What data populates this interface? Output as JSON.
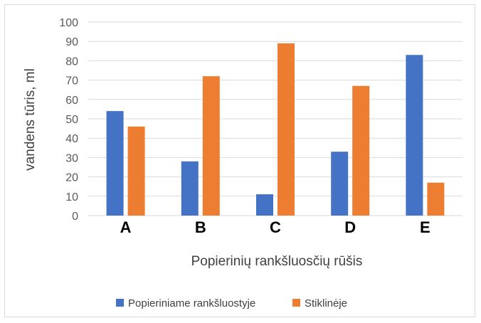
{
  "chart_data": {
    "type": "bar",
    "categories": [
      "A",
      "B",
      "C",
      "D",
      "E"
    ],
    "series": [
      {
        "name": "Popieriniame rankšluostyje",
        "color": "#4472c4",
        "values": [
          54,
          28,
          11,
          33,
          83
        ]
      },
      {
        "name": "Stiklinėje",
        "color": "#ed7d31",
        "values": [
          46,
          72,
          89,
          67,
          17
        ]
      }
    ],
    "title": "",
    "xlabel": "Popierinių rankšluosčių rūšis",
    "ylabel": "vandens tūris, ml",
    "ylim": [
      0,
      100
    ],
    "yticks": [
      0,
      10,
      20,
      30,
      40,
      50,
      60,
      70,
      80,
      90,
      100
    ],
    "grid": true,
    "legend_position": "bottom"
  }
}
